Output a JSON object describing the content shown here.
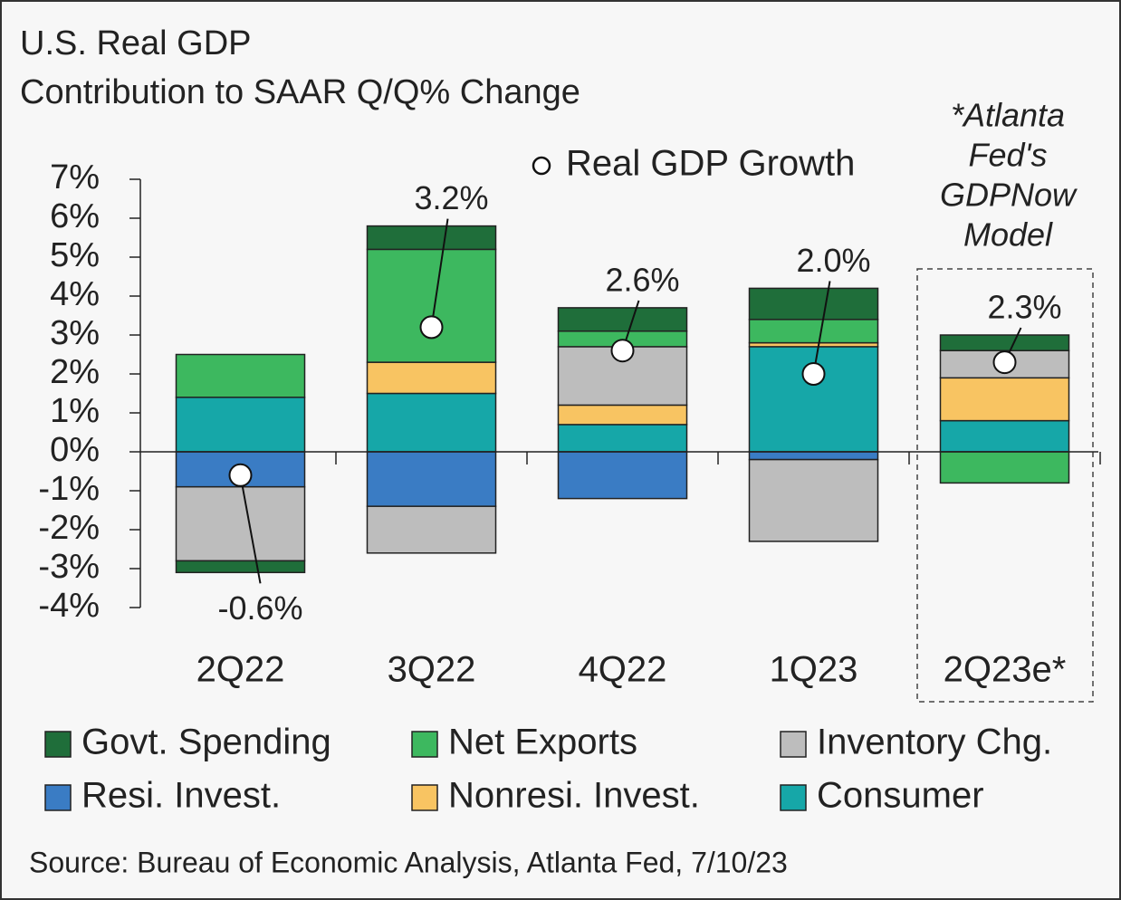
{
  "chart_data": {
    "type": "stacked_bar",
    "title": "U.S. Real GDP",
    "subtitle": "Contribution to SAAR Q/Q% Change",
    "categories": [
      "2Q22",
      "3Q22",
      "4Q22",
      "1Q23",
      "2Q23e*"
    ],
    "series": [
      {
        "name": "Govt. Spending",
        "color": "#1f6e3a",
        "values": [
          -0.3,
          0.6,
          0.6,
          0.8,
          0.4
        ]
      },
      {
        "name": "Net Exports",
        "color": "#3db85f",
        "values": [
          1.1,
          2.9,
          0.4,
          0.6,
          -0.8
        ]
      },
      {
        "name": "Inventory Chg.",
        "color": "#bdbdbd",
        "values": [
          -1.9,
          -1.2,
          1.5,
          -2.1,
          0.7
        ]
      },
      {
        "name": "Resi. Invest.",
        "color": "#3a7cc4",
        "values": [
          -0.9,
          -1.4,
          -1.2,
          -0.2,
          0
        ]
      },
      {
        "name": "Nonresi. Invest.",
        "color": "#f8c462",
        "values": [
          0,
          0.8,
          0.5,
          0.1,
          1.1
        ]
      },
      {
        "name": "Consumer",
        "color": "#16a7a8",
        "values": [
          1.4,
          1.5,
          0.7,
          2.7,
          0.8
        ]
      }
    ],
    "markers": {
      "name": "Real GDP Growth",
      "values": [
        -0.6,
        3.2,
        2.6,
        2.0,
        2.3
      ],
      "value_labels": [
        "-0.6%",
        "3.2%",
        "2.6%",
        "2.0%",
        "2.3%"
      ]
    },
    "ylim": [
      -4,
      7
    ],
    "yticks": [
      {
        "value": -4,
        "label": "-4%"
      },
      {
        "value": -3,
        "label": "-3%"
      },
      {
        "value": -2,
        "label": "-2%"
      },
      {
        "value": -1,
        "label": "-1%"
      },
      {
        "value": 0,
        "label": "0%"
      },
      {
        "value": 1,
        "label": "1%"
      },
      {
        "value": 2,
        "label": "2%"
      },
      {
        "value": 3,
        "label": "3%"
      },
      {
        "value": 4,
        "label": "4%"
      },
      {
        "value": 5,
        "label": "5%"
      },
      {
        "value": 6,
        "label": "6%"
      },
      {
        "value": 7,
        "label": "7%"
      }
    ],
    "annotation": [
      "*Atlanta",
      "Fed's",
      "GDPNow",
      "Model"
    ],
    "source": "Source: Bureau of Economic Analysis, Atlanta Fed, 7/10/23"
  }
}
